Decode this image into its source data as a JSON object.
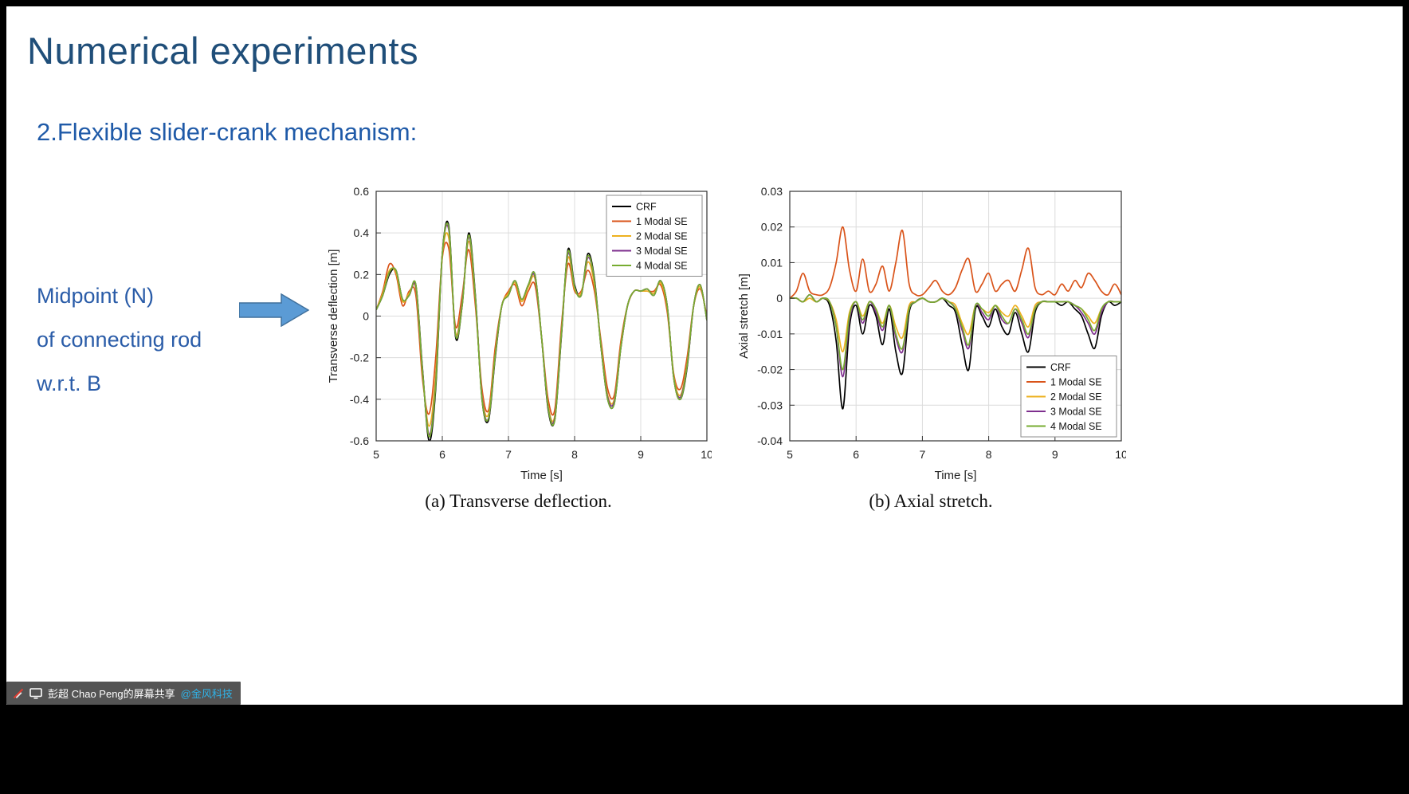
{
  "window": {
    "frame_color": "#000000",
    "slide_bg": "#ffffff"
  },
  "slide": {
    "title": {
      "text": "Numerical experiments",
      "color": "#1f4e79"
    },
    "subtitle": {
      "text": "2.Flexible slider-crank mechanism:",
      "color": "#1f5aa8"
    },
    "annotation": {
      "lines": [
        "Midpoint (N)",
        "of connecting rod",
        "w.r.t. B"
      ],
      "color": "#2a5ca8"
    },
    "arrow": {
      "fill": "#5b9bd5",
      "stroke": "#41719c"
    },
    "captions": {
      "a": "(a) Transverse deflection.",
      "b": "(b) Axial stretch."
    }
  },
  "screen_share_bar": {
    "bg": "#474747",
    "presenter_text": "彭超 Chao Peng的屏幕共享",
    "mention_text": "@金风科技",
    "mention_color": "#2fb3e8",
    "icons": [
      "annotation-pencil-icon",
      "screen-share-icon"
    ]
  },
  "chart_data": [
    {
      "type": "line",
      "title": "",
      "xlabel": "Time [s]",
      "ylabel": "Transverse deflection [m]",
      "xlim": [
        5,
        10
      ],
      "ylim": [
        -0.6,
        0.6
      ],
      "xticks": [
        5,
        6,
        7,
        8,
        9,
        10
      ],
      "yticks": [
        -0.6,
        -0.4,
        -0.2,
        0,
        0.2,
        0.4,
        0.6
      ],
      "grid": true,
      "legend_position": "top-right",
      "x": [
        5,
        5.1,
        5.2,
        5.3,
        5.4,
        5.5,
        5.6,
        5.7,
        5.8,
        5.9,
        6,
        6.1,
        6.2,
        6.3,
        6.4,
        6.5,
        6.6,
        6.7,
        6.8,
        6.9,
        7,
        7.1,
        7.2,
        7.3,
        7.4,
        7.5,
        7.6,
        7.7,
        7.8,
        7.9,
        8,
        8.1,
        8.2,
        8.3,
        8.4,
        8.5,
        8.6,
        8.7,
        8.8,
        8.9,
        9,
        9.1,
        9.2,
        9.3,
        9.4,
        9.5,
        9.6,
        9.7,
        9.8,
        9.9,
        10
      ],
      "series": [
        {
          "name": "CRF",
          "color": "#000000",
          "values": [
            0.03,
            0.1,
            0.2,
            0.22,
            0.08,
            0.1,
            0.15,
            -0.25,
            -0.6,
            -0.35,
            0.3,
            0.43,
            -0.1,
            0.05,
            0.4,
            0.1,
            -0.4,
            -0.5,
            -0.2,
            0.05,
            0.1,
            0.17,
            0.08,
            0.15,
            0.2,
            -0.1,
            -0.45,
            -0.5,
            -0.1,
            0.32,
            0.15,
            0.1,
            0.3,
            0.18,
            -0.15,
            -0.4,
            -0.42,
            -0.15,
            0.05,
            0.12,
            0.12,
            0.13,
            0.1,
            0.17,
            0.05,
            -0.3,
            -0.4,
            -0.25,
            0.05,
            0.15,
            -0.02
          ]
        },
        {
          "name": "1 Modal SE",
          "color": "#d95319",
          "values": [
            0.03,
            0.12,
            0.25,
            0.2,
            0.05,
            0.12,
            0.1,
            -0.3,
            -0.47,
            -0.2,
            0.28,
            0.32,
            -0.05,
            0.1,
            0.32,
            0.05,
            -0.35,
            -0.45,
            -0.15,
            0.05,
            0.12,
            0.15,
            0.05,
            0.12,
            0.15,
            -0.1,
            -0.4,
            -0.45,
            -0.05,
            0.25,
            0.12,
            0.12,
            0.22,
            0.12,
            -0.12,
            -0.35,
            -0.38,
            -0.12,
            0.05,
            0.12,
            0.12,
            0.12,
            0.12,
            0.15,
            0.02,
            -0.28,
            -0.35,
            -0.2,
            0.05,
            0.13,
            0.0
          ]
        },
        {
          "name": "2 Modal SE",
          "color": "#edb120",
          "values": [
            0.03,
            0.11,
            0.22,
            0.21,
            0.07,
            0.11,
            0.13,
            -0.27,
            -0.53,
            -0.28,
            0.29,
            0.37,
            -0.08,
            0.07,
            0.36,
            0.08,
            -0.38,
            -0.47,
            -0.18,
            0.05,
            0.11,
            0.16,
            0.07,
            0.14,
            0.18,
            -0.1,
            -0.43,
            -0.48,
            -0.08,
            0.28,
            0.13,
            0.11,
            0.26,
            0.15,
            -0.14,
            -0.38,
            -0.4,
            -0.14,
            0.05,
            0.12,
            0.12,
            0.12,
            0.11,
            0.16,
            0.04,
            -0.29,
            -0.38,
            -0.23,
            0.05,
            0.14,
            -0.01
          ]
        },
        {
          "name": "3 Modal SE",
          "color": "#7e2f8e",
          "values": [
            0.03,
            0.1,
            0.21,
            0.22,
            0.08,
            0.1,
            0.14,
            -0.26,
            -0.57,
            -0.32,
            0.3,
            0.41,
            -0.09,
            0.06,
            0.38,
            0.09,
            -0.39,
            -0.49,
            -0.19,
            0.05,
            0.1,
            0.17,
            0.08,
            0.15,
            0.19,
            -0.1,
            -0.44,
            -0.49,
            -0.09,
            0.3,
            0.14,
            0.1,
            0.28,
            0.17,
            -0.15,
            -0.39,
            -0.41,
            -0.15,
            0.05,
            0.12,
            0.12,
            0.13,
            0.1,
            0.17,
            0.05,
            -0.3,
            -0.39,
            -0.24,
            0.05,
            0.15,
            -0.02
          ]
        },
        {
          "name": "4 Modal SE",
          "color": "#77ac30",
          "values": [
            0.03,
            0.1,
            0.21,
            0.22,
            0.08,
            0.1,
            0.15,
            -0.26,
            -0.58,
            -0.33,
            0.3,
            0.42,
            -0.09,
            0.05,
            0.39,
            0.09,
            -0.4,
            -0.49,
            -0.19,
            0.05,
            0.1,
            0.17,
            0.08,
            0.15,
            0.2,
            -0.1,
            -0.44,
            -0.5,
            -0.09,
            0.31,
            0.14,
            0.1,
            0.29,
            0.17,
            -0.15,
            -0.4,
            -0.42,
            -0.15,
            0.05,
            0.12,
            0.12,
            0.13,
            0.1,
            0.17,
            0.05,
            -0.3,
            -0.4,
            -0.24,
            0.05,
            0.15,
            -0.02
          ]
        }
      ]
    },
    {
      "type": "line",
      "title": "",
      "xlabel": "Time [s]",
      "ylabel": "Axial stretch [m]",
      "xlim": [
        5,
        10
      ],
      "ylim": [
        -0.04,
        0.03
      ],
      "xticks": [
        5,
        6,
        7,
        8,
        9,
        10
      ],
      "yticks": [
        -0.04,
        -0.03,
        -0.02,
        -0.01,
        0,
        0.01,
        0.02,
        0.03
      ],
      "grid": true,
      "legend_position": "bottom-right",
      "x": [
        5,
        5.1,
        5.2,
        5.3,
        5.4,
        5.5,
        5.6,
        5.7,
        5.8,
        5.9,
        6,
        6.1,
        6.2,
        6.3,
        6.4,
        6.5,
        6.6,
        6.7,
        6.8,
        6.9,
        7,
        7.1,
        7.2,
        7.3,
        7.4,
        7.5,
        7.6,
        7.7,
        7.8,
        7.9,
        8,
        8.1,
        8.2,
        8.3,
        8.4,
        8.5,
        8.6,
        8.7,
        8.8,
        8.9,
        9,
        9.1,
        9.2,
        9.3,
        9.4,
        9.5,
        9.6,
        9.7,
        9.8,
        9.9,
        10
      ],
      "series": [
        {
          "name": "CRF",
          "color": "#000000",
          "values": [
            0.0,
            0.0,
            -0.001,
            0.001,
            -0.001,
            0.0,
            -0.002,
            -0.012,
            -0.031,
            -0.008,
            -0.002,
            -0.01,
            -0.002,
            -0.005,
            -0.013,
            -0.003,
            -0.015,
            -0.021,
            -0.004,
            -0.001,
            0.0,
            -0.001,
            -0.001,
            0.0,
            -0.002,
            -0.004,
            -0.013,
            -0.02,
            -0.003,
            -0.005,
            -0.008,
            -0.003,
            -0.008,
            -0.01,
            -0.004,
            -0.01,
            -0.015,
            -0.004,
            -0.001,
            -0.001,
            -0.001,
            -0.002,
            -0.001,
            -0.003,
            -0.005,
            -0.01,
            -0.014,
            -0.005,
            -0.001,
            -0.002,
            -0.001
          ]
        },
        {
          "name": "1 Modal SE",
          "color": "#d95319",
          "values": [
            0.0,
            0.002,
            0.007,
            0.002,
            0.001,
            0.001,
            0.003,
            0.01,
            0.02,
            0.008,
            0.002,
            0.011,
            0.002,
            0.004,
            0.009,
            0.002,
            0.01,
            0.019,
            0.004,
            0.001,
            0.001,
            0.003,
            0.005,
            0.002,
            0.001,
            0.003,
            0.008,
            0.011,
            0.002,
            0.004,
            0.007,
            0.002,
            0.004,
            0.005,
            0.002,
            0.008,
            0.014,
            0.003,
            0.001,
            0.002,
            0.001,
            0.004,
            0.002,
            0.005,
            0.003,
            0.007,
            0.005,
            0.002,
            0.001,
            0.004,
            0.001
          ]
        },
        {
          "name": "2 Modal SE",
          "color": "#edb120",
          "values": [
            0.0,
            0.0,
            -0.001,
            0.0,
            -0.001,
            0.0,
            -0.001,
            -0.006,
            -0.015,
            -0.004,
            -0.001,
            -0.005,
            -0.001,
            -0.003,
            -0.007,
            -0.002,
            -0.008,
            -0.011,
            -0.002,
            -0.001,
            0.0,
            -0.001,
            -0.001,
            0.0,
            -0.001,
            -0.002,
            -0.007,
            -0.01,
            -0.002,
            -0.003,
            -0.004,
            -0.002,
            -0.004,
            -0.005,
            -0.002,
            -0.005,
            -0.008,
            -0.002,
            -0.001,
            -0.001,
            -0.001,
            -0.001,
            -0.001,
            -0.002,
            -0.003,
            -0.005,
            -0.007,
            -0.003,
            -0.001,
            -0.001,
            -0.001
          ]
        },
        {
          "name": "3 Modal SE",
          "color": "#7e2f8e",
          "values": [
            0.0,
            0.0,
            -0.001,
            0.001,
            -0.001,
            0.0,
            -0.001,
            -0.008,
            -0.022,
            -0.006,
            -0.001,
            -0.007,
            -0.001,
            -0.004,
            -0.009,
            -0.002,
            -0.011,
            -0.015,
            -0.003,
            -0.001,
            0.0,
            -0.001,
            -0.001,
            0.0,
            -0.001,
            -0.003,
            -0.009,
            -0.014,
            -0.002,
            -0.004,
            -0.006,
            -0.002,
            -0.006,
            -0.007,
            -0.003,
            -0.007,
            -0.011,
            -0.003,
            -0.001,
            -0.001,
            -0.001,
            -0.001,
            -0.001,
            -0.002,
            -0.004,
            -0.007,
            -0.01,
            -0.004,
            -0.001,
            -0.001,
            -0.001
          ]
        },
        {
          "name": "4 Modal SE",
          "color": "#77ac30",
          "values": [
            0.0,
            0.0,
            -0.001,
            0.001,
            -0.001,
            0.0,
            -0.001,
            -0.008,
            -0.02,
            -0.005,
            -0.001,
            -0.006,
            -0.001,
            -0.003,
            -0.008,
            -0.002,
            -0.01,
            -0.014,
            -0.003,
            -0.001,
            0.0,
            -0.001,
            -0.001,
            0.0,
            -0.001,
            -0.003,
            -0.008,
            -0.013,
            -0.002,
            -0.003,
            -0.005,
            -0.002,
            -0.005,
            -0.007,
            -0.003,
            -0.006,
            -0.01,
            -0.003,
            -0.001,
            -0.001,
            -0.001,
            -0.001,
            -0.001,
            -0.002,
            -0.003,
            -0.006,
            -0.009,
            -0.003,
            -0.001,
            -0.001,
            -0.001
          ]
        }
      ]
    }
  ]
}
